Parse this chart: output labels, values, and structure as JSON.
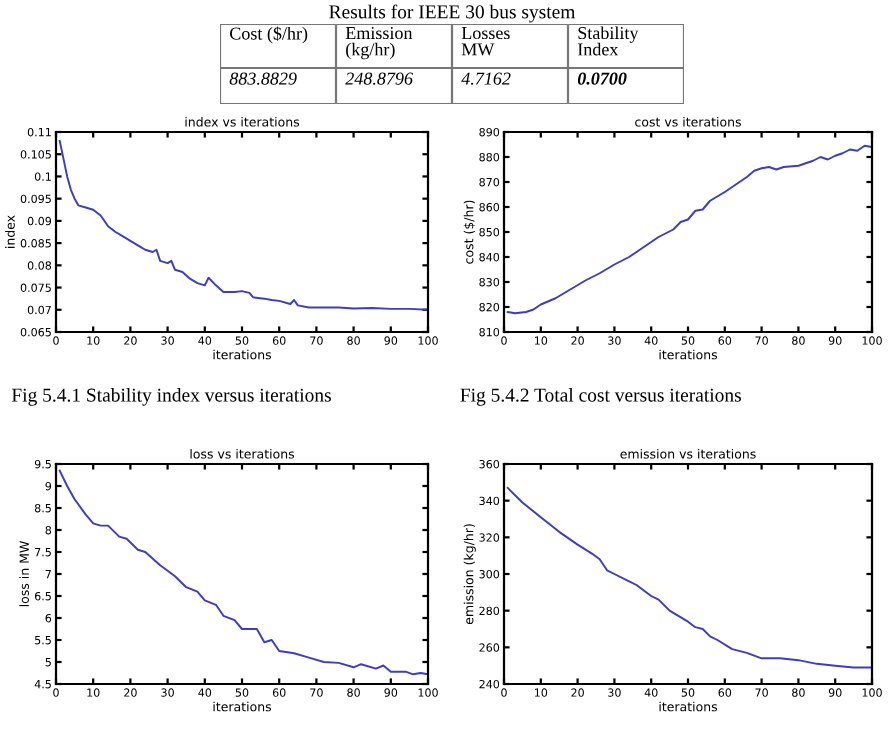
{
  "chart_data": [
    {
      "type": "other",
      "title": "Results for IEEE 30 bus system",
      "categories": [
        "Cost ($/hr)",
        "Emission\n(kg/hr)",
        "Losses\nMW",
        "Stability\nIndex"
      ],
      "annotations": [
        "883.8829",
        "248.8796",
        "4.7162",
        "0.0700"
      ]
    },
    {
      "type": "line",
      "title": "index vs iterations",
      "xlabel": "iterations",
      "ylabel": "index",
      "xlim": [
        0,
        100
      ],
      "xticks": [
        0,
        10,
        20,
        30,
        40,
        50,
        60,
        70,
        80,
        90,
        100
      ],
      "ylim": [
        0.065,
        0.11
      ],
      "yticks": [
        0.065,
        0.07,
        0.075,
        0.08,
        0.085,
        0.09,
        0.095,
        0.1,
        0.105,
        0.11
      ],
      "annotations": [
        "Fig 5.4.1 Stability index versus iterations"
      ],
      "x": [
        1,
        2,
        3,
        4,
        5,
        6,
        8,
        10,
        12,
        14,
        16,
        18,
        20,
        22,
        24,
        26,
        27,
        28,
        30,
        31,
        32,
        34,
        36,
        38,
        40,
        41,
        43,
        45,
        48,
        50,
        52,
        53,
        56,
        58,
        60,
        63,
        64,
        65,
        68,
        72,
        76,
        80,
        85,
        90,
        95,
        100
      ],
      "series": [
        {
          "color": "#3c3cc8",
          "values": [
            0.108,
            0.104,
            0.1,
            0.097,
            0.095,
            0.0935,
            0.093,
            0.0925,
            0.0912,
            0.0888,
            0.0875,
            0.0865,
            0.0855,
            0.0845,
            0.0835,
            0.083,
            0.0835,
            0.081,
            0.0805,
            0.081,
            0.079,
            0.0785,
            0.077,
            0.076,
            0.0755,
            0.0772,
            0.0755,
            0.074,
            0.074,
            0.0742,
            0.0738,
            0.0728,
            0.0725,
            0.0722,
            0.072,
            0.0713,
            0.0722,
            0.071,
            0.0705,
            0.0705,
            0.0705,
            0.0703,
            0.0704,
            0.0702,
            0.0702,
            0.07
          ]
        }
      ]
    },
    {
      "type": "line",
      "title": "cost vs iterations",
      "xlabel": "iterations",
      "ylabel": "cost ($/hr)",
      "xlim": [
        0,
        100
      ],
      "xticks": [
        0,
        10,
        20,
        30,
        40,
        50,
        60,
        70,
        80,
        90,
        100
      ],
      "ylim": [
        810,
        890
      ],
      "yticks": [
        810,
        820,
        830,
        840,
        850,
        860,
        870,
        880,
        890
      ],
      "annotations": [
        "Fig 5.4.2 Total cost versus iterations"
      ],
      "x": [
        1,
        3,
        6,
        8,
        10,
        14,
        18,
        22,
        26,
        30,
        34,
        38,
        42,
        46,
        48,
        50,
        52,
        54,
        56,
        60,
        64,
        66,
        68,
        70,
        72,
        74,
        76,
        80,
        84,
        86,
        88,
        90,
        92,
        94,
        96,
        98,
        100
      ],
      "series": [
        {
          "color": "#3c3cc8",
          "values": [
            818,
            817.5,
            818,
            819,
            821,
            823.5,
            827,
            830.5,
            833.5,
            837,
            840,
            844,
            848,
            851,
            854,
            855,
            858.5,
            859,
            862.5,
            866,
            870,
            872,
            874.5,
            875.5,
            876,
            875,
            876,
            876.5,
            878.5,
            880,
            879,
            880.5,
            881.5,
            883,
            882.5,
            884.5,
            884
          ]
        }
      ]
    },
    {
      "type": "line",
      "title": "loss vs iterations",
      "xlabel": "iterations",
      "ylabel": "loss in MW",
      "xlim": [
        0,
        100
      ],
      "xticks": [
        0,
        10,
        20,
        30,
        40,
        50,
        60,
        70,
        80,
        90,
        100
      ],
      "ylim": [
        4.5,
        9.5
      ],
      "yticks": [
        4.5,
        5,
        5.5,
        6,
        6.5,
        7,
        7.5,
        8,
        8.5,
        9,
        9.5
      ],
      "x": [
        1,
        3,
        5,
        8,
        10,
        12,
        14,
        17,
        19,
        22,
        24,
        28,
        32,
        35,
        38,
        40,
        43,
        45,
        48,
        50,
        54,
        56,
        58,
        60,
        64,
        68,
        72,
        76,
        80,
        82,
        86,
        88,
        90,
        94,
        96,
        98,
        100
      ],
      "series": [
        {
          "color": "#3c3cc8",
          "values": [
            9.35,
            9.0,
            8.7,
            8.35,
            8.15,
            8.1,
            8.1,
            7.85,
            7.8,
            7.55,
            7.5,
            7.2,
            6.95,
            6.7,
            6.6,
            6.4,
            6.3,
            6.05,
            5.95,
            5.75,
            5.75,
            5.45,
            5.5,
            5.25,
            5.2,
            5.1,
            5.0,
            4.98,
            4.88,
            4.95,
            4.85,
            4.92,
            4.78,
            4.78,
            4.72,
            4.75,
            4.72
          ]
        }
      ]
    },
    {
      "type": "line",
      "title": "emission vs iterations",
      "xlabel": "iterations",
      "ylabel": "emission (kg/hr)",
      "xlim": [
        0,
        100
      ],
      "xticks": [
        0,
        10,
        20,
        30,
        40,
        50,
        60,
        70,
        80,
        90,
        100
      ],
      "ylim": [
        240,
        360
      ],
      "yticks": [
        240,
        260,
        280,
        300,
        320,
        340,
        360
      ],
      "x": [
        1,
        5,
        10,
        15,
        20,
        24,
        26,
        28,
        30,
        34,
        36,
        38,
        40,
        42,
        45,
        50,
        52,
        54,
        56,
        58,
        62,
        66,
        70,
        75,
        80,
        85,
        90,
        95,
        100
      ],
      "series": [
        {
          "color": "#3c3cc8",
          "values": [
            347,
            339,
            331,
            323,
            316,
            311,
            308,
            302,
            300,
            296,
            294,
            291,
            288,
            286,
            280,
            274,
            271,
            270,
            266,
            264,
            259,
            257,
            254,
            254,
            253,
            251,
            250,
            249,
            249
          ]
        }
      ]
    }
  ]
}
